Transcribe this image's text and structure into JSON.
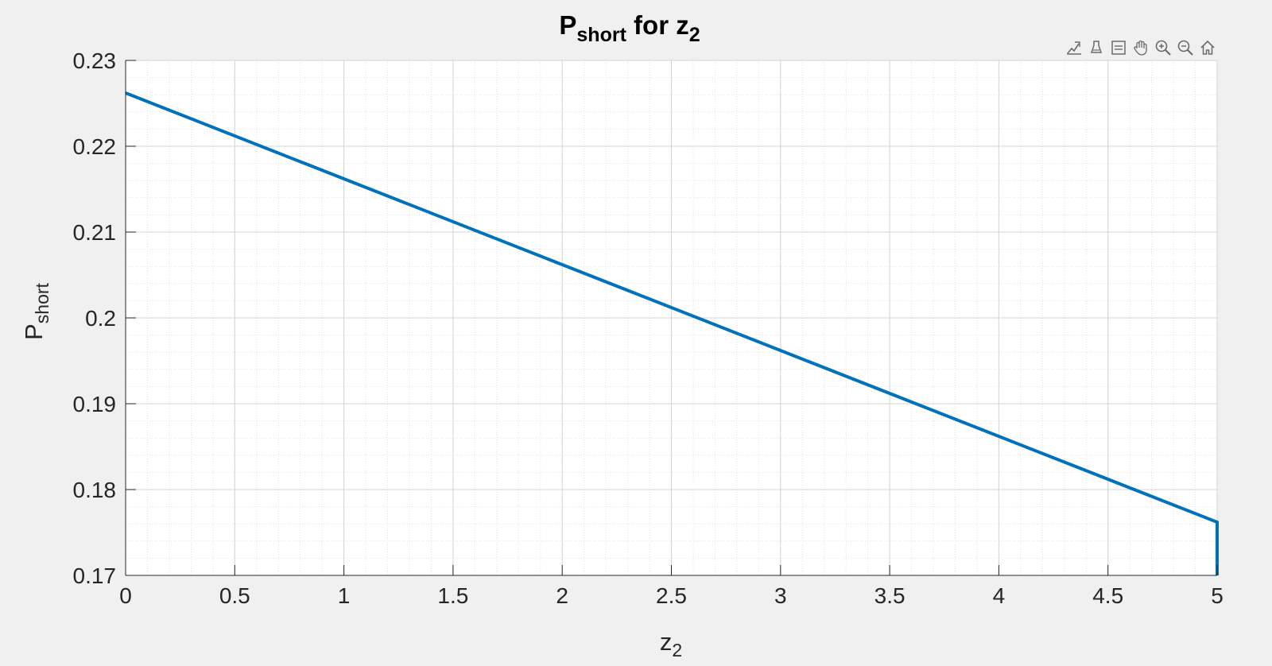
{
  "chart_data": {
    "type": "line",
    "title": {
      "main": "P",
      "sub": "short",
      "middle": " for z",
      "sub2": "2"
    },
    "xlabel": {
      "main": "z",
      "sub": "2"
    },
    "ylabel": {
      "main": "P",
      "sub": "short"
    },
    "xlim": [
      0,
      5
    ],
    "ylim": [
      0.17,
      0.23
    ],
    "xticks": [
      "0",
      "0.5",
      "1",
      "1.5",
      "2",
      "2.5",
      "3",
      "3.5",
      "4",
      "4.5",
      "5"
    ],
    "yticks": [
      "0.17",
      "0.18",
      "0.19",
      "0.2",
      "0.21",
      "0.22",
      "0.23"
    ],
    "grid": true,
    "minor_grid": true,
    "series": [
      {
        "color": "#0072BD",
        "x": [
          0,
          1,
          2,
          3,
          4,
          5,
          5
        ],
        "y": [
          0.2262,
          0.2162,
          0.2062,
          0.1962,
          0.1862,
          0.1762,
          0.17
        ]
      }
    ]
  },
  "toolbar": {
    "buttons": [
      {
        "name": "data-tips-icon"
      },
      {
        "name": "brush-icon"
      },
      {
        "name": "export-icon"
      },
      {
        "name": "pan-icon"
      },
      {
        "name": "zoom-in-icon"
      },
      {
        "name": "zoom-out-icon"
      },
      {
        "name": "home-icon"
      }
    ]
  }
}
